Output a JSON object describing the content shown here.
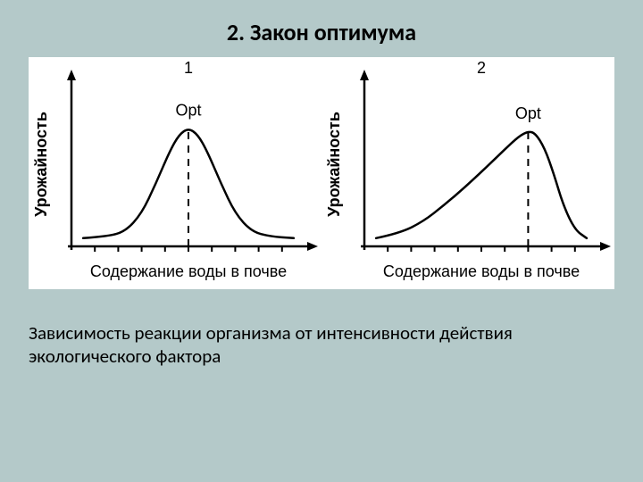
{
  "title": "2. Закон оптимума",
  "caption": "Зависимость реакции организма от интенсивности действия экологического фактора",
  "title_fontsize": 26,
  "caption_fontsize": 21,
  "background_color": "#b4c9c9",
  "panel_bg": "#ffffff",
  "charts": [
    {
      "type": "line",
      "label": "1",
      "opt_label": "Opt",
      "ylabel": "Урожайность",
      "xlabel": "Содержание воды в почве",
      "stroke": "#000000",
      "stroke_width": 2.5,
      "axis_stroke_width": 2.5,
      "label_fontsize": 18,
      "axis_fontsize": 18,
      "chart_num_fontsize": 18,
      "xlim": [
        0,
        10
      ],
      "ylim": [
        0,
        10
      ],
      "xticks": [
        1,
        2,
        3,
        4,
        5,
        6,
        7,
        8,
        9
      ],
      "opt_x": 5.0,
      "opt_top_y": 7.2,
      "points": [
        [
          0.5,
          0.5
        ],
        [
          1.5,
          0.6
        ],
        [
          2.3,
          0.9
        ],
        [
          3.0,
          2.0
        ],
        [
          3.6,
          3.8
        ],
        [
          4.2,
          5.8
        ],
        [
          4.6,
          6.8
        ],
        [
          5.0,
          7.2
        ],
        [
          5.4,
          6.8
        ],
        [
          5.8,
          5.8
        ],
        [
          6.4,
          3.8
        ],
        [
          7.0,
          2.0
        ],
        [
          7.7,
          0.9
        ],
        [
          8.5,
          0.6
        ],
        [
          9.5,
          0.5
        ]
      ]
    },
    {
      "type": "line",
      "label": "2",
      "opt_label": "Opt",
      "ylabel": "Урожайность",
      "xlabel": "Содержание воды в почве",
      "stroke": "#000000",
      "stroke_width": 2.5,
      "axis_stroke_width": 2.5,
      "label_fontsize": 18,
      "axis_fontsize": 18,
      "chart_num_fontsize": 18,
      "xlim": [
        0,
        10
      ],
      "ylim": [
        0,
        10
      ],
      "xticks": [
        1,
        2,
        3,
        4,
        5,
        6,
        7,
        8,
        9
      ],
      "opt_x": 7.0,
      "opt_top_y": 7.0,
      "points": [
        [
          0.5,
          0.5
        ],
        [
          1.5,
          0.8
        ],
        [
          2.5,
          1.5
        ],
        [
          3.4,
          2.5
        ],
        [
          4.3,
          3.6
        ],
        [
          5.2,
          4.8
        ],
        [
          6.0,
          5.9
        ],
        [
          6.6,
          6.7
        ],
        [
          7.0,
          7.0
        ],
        [
          7.3,
          6.9
        ],
        [
          7.7,
          6.0
        ],
        [
          8.1,
          4.4
        ],
        [
          8.5,
          2.5
        ],
        [
          9.0,
          1.0
        ],
        [
          9.5,
          0.5
        ]
      ]
    }
  ]
}
